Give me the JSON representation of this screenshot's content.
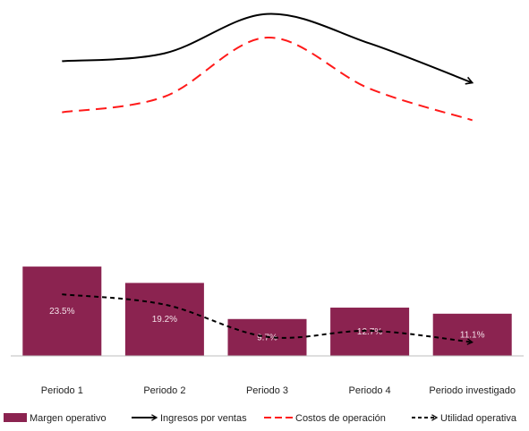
{
  "colors": {
    "bar": "#8b2350",
    "ingresos": "#000000",
    "costos": "#ff1a1a",
    "utilidad": "#000000",
    "axis": "#bdbdbd",
    "bar_label": "#f2dfe7",
    "text": "#222222"
  },
  "chart_data": {
    "type": "bar",
    "categories": [
      "Periodo 1",
      "Periodo 2",
      "Periodo 3",
      "Periodo 4",
      "Periodo investigado"
    ],
    "bar_series": {
      "name": "Margen operativo",
      "values": [
        23.5,
        19.2,
        9.7,
        12.7,
        11.1
      ],
      "labels": [
        "23.5%",
        "19.2%",
        "9.7%",
        "12.7%",
        "11.1%"
      ]
    },
    "line_series": [
      {
        "name": "Ingresos por ventas",
        "style": "solid-arrow",
        "values": [
          88,
          92,
          112,
          97,
          77
        ]
      },
      {
        "name": "Costos de operación",
        "style": "dashed",
        "values": [
          62,
          70,
          100,
          74,
          58
        ]
      },
      {
        "name": "Utilidad operativa",
        "style": "dotted-arrow",
        "values": [
          16.2,
          13.5,
          5.0,
          6.6,
          3.6
        ]
      }
    ],
    "legend_position": "bottom",
    "grid": false,
    "title": "",
    "xlabel": "",
    "ylabel": ""
  }
}
